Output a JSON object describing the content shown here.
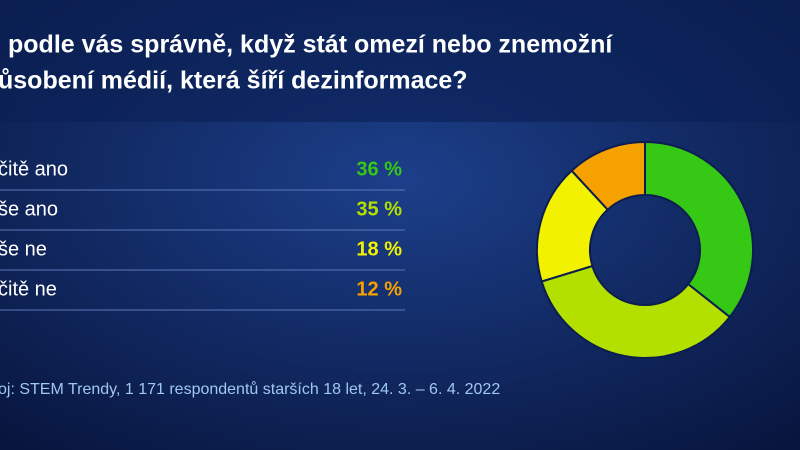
{
  "chart_data": {
    "type": "donut",
    "title_lines": [
      "podle vás správně, když stát omezí nebo znemožní",
      "ůsobení médií, která šíří dezinformace?"
    ],
    "categories": [
      "čitě ano",
      "še ano",
      "še ne",
      "čitě ne"
    ],
    "values": [
      36,
      35,
      18,
      12
    ],
    "value_labels": [
      "36 %",
      "35 %",
      "18 %",
      "12 %"
    ],
    "colors": [
      "#35c814",
      "#b4e000",
      "#f2f200",
      "#f5a200"
    ],
    "source": "oj: STEM Trendy, 1 171 respondentů starších 18 let, 24. 3. – 6. 4. 2022"
  }
}
